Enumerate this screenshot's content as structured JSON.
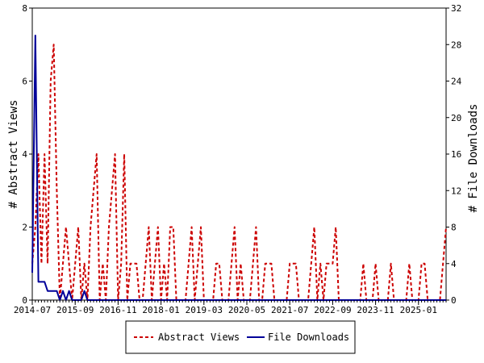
{
  "chart_data": {
    "type": "line",
    "y_left_label": "# Abstract Views",
    "y_right_label": "# File Downloads",
    "y_left_range": [
      0,
      8
    ],
    "y_right_range": [
      0,
      32
    ],
    "y_left_ticks": [
      "0",
      "2",
      "4",
      "6",
      "8"
    ],
    "y_right_ticks": [
      "0",
      "4",
      "8",
      "12",
      "16",
      "20",
      "24",
      "28",
      "32"
    ],
    "x_tick_labels": [
      "2014-07",
      "2015-09",
      "2016-11",
      "2018-01",
      "2019-03",
      "2020-05",
      "2021-07",
      "2022-09",
      "2023-11",
      "2025-01"
    ],
    "x_month_count": 136,
    "legend_position": "bottom",
    "colors": {
      "views": "#cc0000",
      "downloads": "#000099"
    },
    "series": [
      {
        "name": "Abstract Views",
        "axis": "left",
        "values": [
          1,
          2,
          4,
          1,
          4,
          1,
          6,
          7,
          3,
          0,
          1,
          2,
          1,
          0,
          1,
          2,
          0,
          1,
          0,
          2,
          3,
          4,
          0,
          1,
          0,
          2,
          3,
          4,
          0,
          1,
          4,
          0,
          1,
          1,
          1,
          0,
          0,
          1,
          2,
          0,
          1,
          2,
          0,
          1,
          0,
          2,
          2,
          0,
          0,
          0,
          0,
          1,
          2,
          0,
          1,
          2,
          0,
          0,
          0,
          0,
          1,
          1,
          0,
          0,
          0,
          1,
          2,
          0,
          1,
          0,
          0,
          0,
          1,
          2,
          0,
          0,
          1,
          1,
          1,
          0,
          0,
          0,
          0,
          0,
          1,
          1,
          1,
          0,
          0,
          0,
          0,
          1,
          2,
          0,
          1,
          0,
          1,
          1,
          1,
          2,
          0,
          0,
          0,
          0,
          0,
          0,
          0,
          0,
          1,
          0,
          0,
          0,
          1,
          0,
          0,
          0,
          0,
          1,
          0,
          0,
          0,
          0,
          0,
          1,
          0,
          0,
          0,
          1,
          1,
          0,
          0,
          0,
          0,
          0,
          1,
          2
        ]
      },
      {
        "name": "File Downloads",
        "axis": "right",
        "values": [
          3,
          29,
          2,
          2,
          2,
          1,
          1,
          1,
          1,
          0,
          1,
          0,
          1,
          0,
          0,
          0,
          0,
          1,
          0,
          0,
          0,
          0,
          0,
          0,
          0,
          0,
          0,
          0,
          0,
          0,
          0,
          0,
          0,
          0,
          0,
          0,
          0,
          0,
          0,
          0,
          0,
          0,
          0,
          0,
          0,
          0,
          0,
          0,
          0,
          0,
          0,
          0,
          0,
          0,
          0,
          0,
          0,
          0,
          0,
          0,
          0,
          0,
          0,
          0,
          0,
          0,
          0,
          0,
          0,
          0,
          0,
          0,
          0,
          0,
          0,
          0,
          0,
          0,
          0,
          0,
          0,
          0,
          0,
          0,
          0,
          0,
          0,
          0,
          0,
          0,
          0,
          0,
          0,
          0,
          0,
          0,
          0,
          0,
          0,
          0,
          0,
          0,
          0,
          0,
          0,
          0,
          0,
          0,
          0,
          0,
          0,
          0,
          0,
          0,
          0,
          0,
          0,
          0,
          0,
          0,
          0,
          0,
          0,
          0,
          0,
          0,
          0,
          0,
          0,
          0,
          0,
          0,
          0,
          0,
          0,
          0
        ]
      }
    ]
  }
}
